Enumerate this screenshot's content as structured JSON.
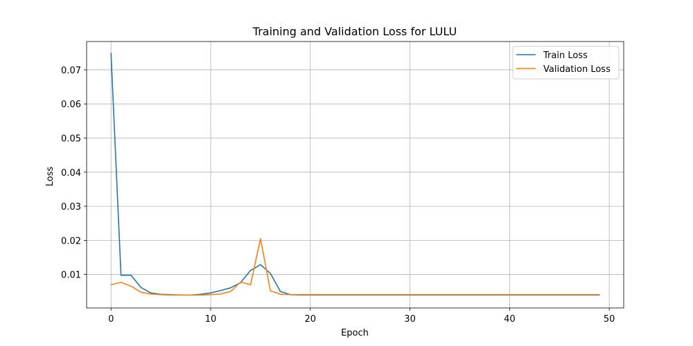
{
  "chart_data": {
    "type": "line",
    "title": "Training and Validation Loss for LULU",
    "xlabel": "Epoch",
    "ylabel": "Loss",
    "xlim": [
      -2.45,
      51.45
    ],
    "ylim": [
      0.0002,
      0.0783
    ],
    "x_ticks": [
      {
        "value": 0,
        "label": "0"
      },
      {
        "value": 10,
        "label": "10"
      },
      {
        "value": 20,
        "label": "20"
      },
      {
        "value": 30,
        "label": "30"
      },
      {
        "value": 40,
        "label": "40"
      },
      {
        "value": 50,
        "label": "50"
      }
    ],
    "y_ticks": [
      {
        "value": 0.01,
        "label": "0.01"
      },
      {
        "value": 0.02,
        "label": "0.02"
      },
      {
        "value": 0.03,
        "label": "0.03"
      },
      {
        "value": 0.04,
        "label": "0.04"
      },
      {
        "value": 0.05,
        "label": "0.05"
      },
      {
        "value": 0.06,
        "label": "0.06"
      },
      {
        "value": 0.07,
        "label": "0.07"
      }
    ],
    "grid": true,
    "legend_position": "top-right",
    "x": [
      0,
      1,
      2,
      3,
      4,
      5,
      6,
      7,
      8,
      9,
      10,
      11,
      12,
      13,
      14,
      15,
      16,
      17,
      18,
      19,
      20,
      21,
      22,
      23,
      24,
      25,
      26,
      27,
      28,
      29,
      30,
      31,
      32,
      33,
      34,
      35,
      36,
      37,
      38,
      39,
      40,
      41,
      42,
      43,
      44,
      45,
      46,
      47,
      48,
      49
    ],
    "series": [
      {
        "name": "Train Loss",
        "color": "#1f77b4",
        "values": [
          0.0748,
          0.0098,
          0.0098,
          0.0062,
          0.0046,
          0.0042,
          0.0041,
          0.004,
          0.004,
          0.0042,
          0.0046,
          0.0053,
          0.0061,
          0.0076,
          0.0112,
          0.0129,
          0.0103,
          0.005,
          0.0041,
          0.004,
          0.004,
          0.004,
          0.004,
          0.004,
          0.004,
          0.004,
          0.004,
          0.004,
          0.004,
          0.004,
          0.004,
          0.004,
          0.004,
          0.004,
          0.004,
          0.004,
          0.004,
          0.004,
          0.004,
          0.004,
          0.004,
          0.004,
          0.004,
          0.004,
          0.004,
          0.004,
          0.004,
          0.004,
          0.004,
          0.004
        ]
      },
      {
        "name": "Validation Loss",
        "color": "#ff7f0e",
        "values": [
          0.007,
          0.0077,
          0.0066,
          0.0048,
          0.0043,
          0.0041,
          0.004,
          0.004,
          0.004,
          0.004,
          0.0041,
          0.0043,
          0.005,
          0.0078,
          0.007,
          0.0205,
          0.0052,
          0.0042,
          0.0041,
          0.0041,
          0.0041,
          0.0041,
          0.0041,
          0.0041,
          0.0041,
          0.0041,
          0.0041,
          0.0041,
          0.0041,
          0.0041,
          0.0041,
          0.0041,
          0.0041,
          0.0041,
          0.0041,
          0.0041,
          0.0041,
          0.0041,
          0.0041,
          0.0041,
          0.0041,
          0.0041,
          0.0041,
          0.0041,
          0.0041,
          0.0041,
          0.0041,
          0.0041,
          0.0041,
          0.0041
        ]
      }
    ]
  }
}
